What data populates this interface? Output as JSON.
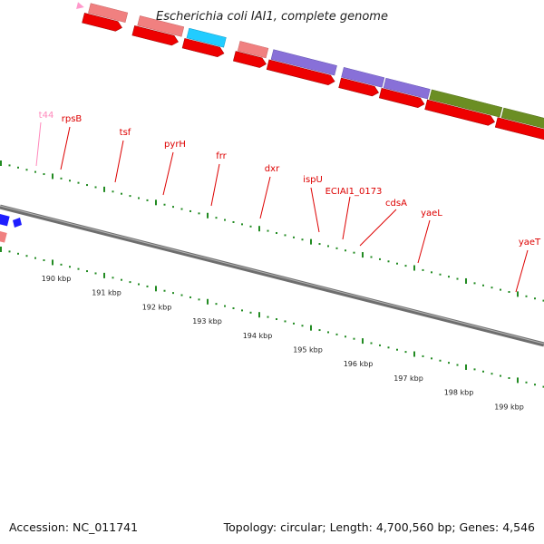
{
  "title": "Escherichia coli IAI1, complete genome",
  "footer": {
    "accession": "Accession: NC_011741",
    "topology": "Topology: circular; Length: 4,700,560 bp; Genes: 4,546"
  },
  "colors": {
    "cds_forward": "#f08080",
    "cds_reverse": "#ee0000",
    "rrna": "#22ccff",
    "trna": "#ff99cc",
    "cog_lipid": "#8870d8",
    "cog_cell_wall": "#6b8e23",
    "other": "#1e1eff",
    "backbone": "#7a7a7a",
    "gc_ticks": "#228b22",
    "label": "#dd0000",
    "label_trna": "#ff88bb"
  },
  "gene_labels": [
    {
      "text": "t44",
      "kind": "trna"
    },
    {
      "text": "rpsB",
      "kind": "cds"
    },
    {
      "text": "tsf",
      "kind": "cds"
    },
    {
      "text": "pyrH",
      "kind": "cds"
    },
    {
      "text": "frr",
      "kind": "cds"
    },
    {
      "text": "dxr",
      "kind": "cds"
    },
    {
      "text": "ispU",
      "kind": "cds"
    },
    {
      "text": "ECIAI1_0173",
      "kind": "cds"
    },
    {
      "text": "cdsA",
      "kind": "cds"
    },
    {
      "text": "yaeL",
      "kind": "cds"
    },
    {
      "text": "yaeT",
      "kind": "cds"
    }
  ],
  "position_ticks": [
    "190 kbp",
    "191 kbp",
    "192 kbp",
    "193 kbp",
    "194 kbp",
    "195 kbp",
    "196 kbp",
    "197 kbp",
    "198 kbp",
    "199 kbp"
  ]
}
